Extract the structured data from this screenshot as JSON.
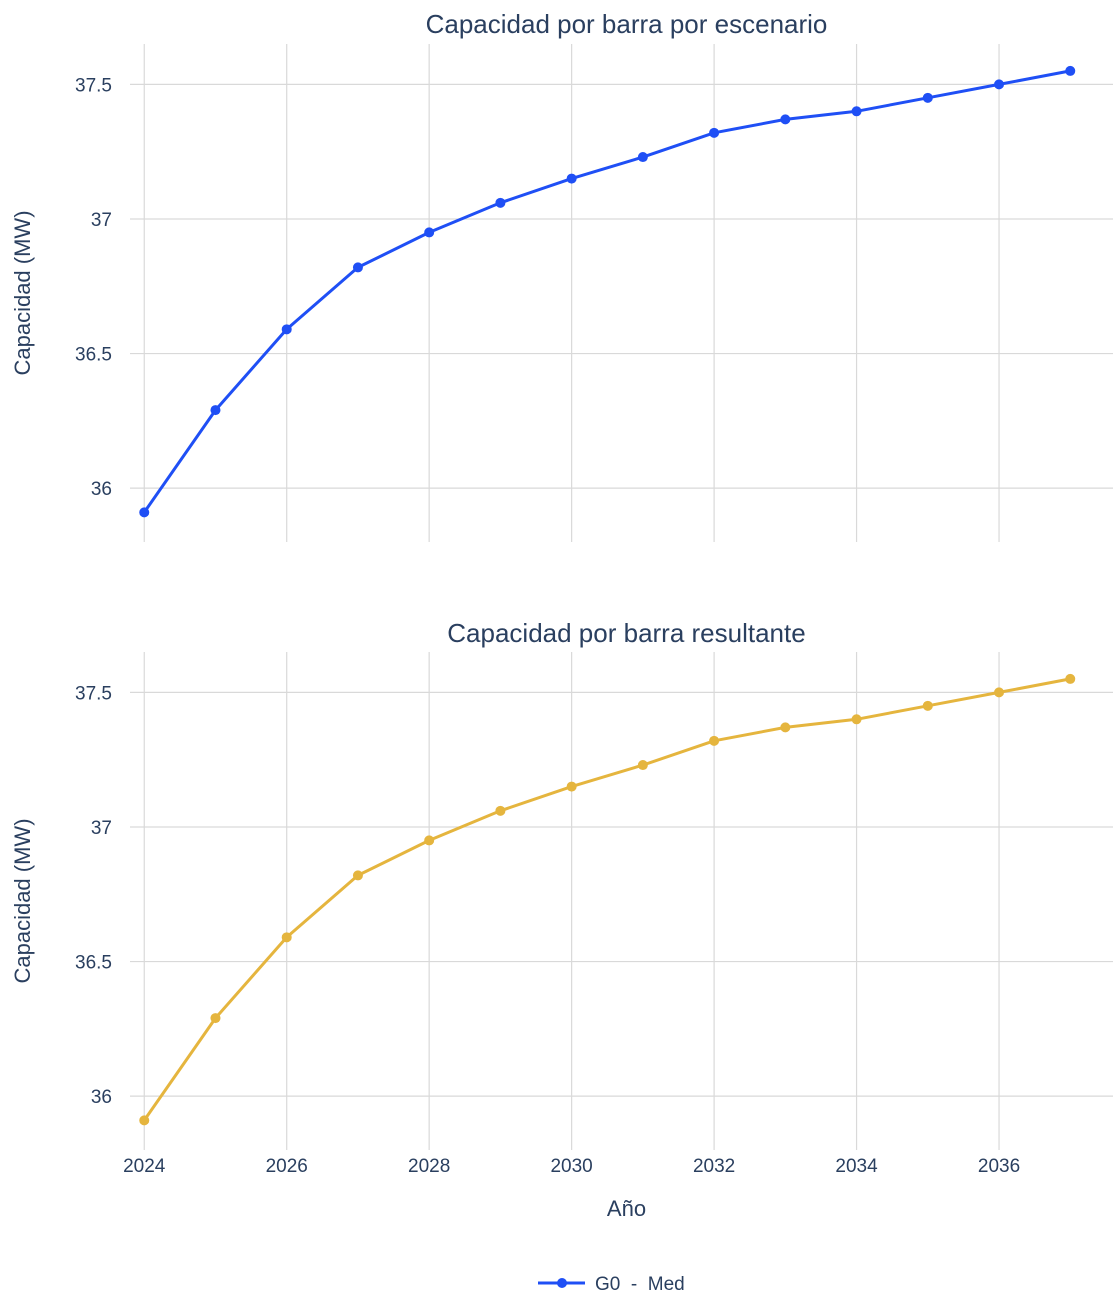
{
  "chart_data": [
    {
      "type": "line",
      "title": "Capacidad por barra por escenario",
      "xlabel": "",
      "ylabel": "Capacidad (MW)",
      "xlim": [
        2023.8,
        2037.6
      ],
      "ylim": [
        35.8,
        37.65
      ],
      "yticks": [
        36,
        36.5,
        37,
        37.5
      ],
      "ytick_labels": [
        "36",
        "36.5",
        "37",
        "37.5"
      ],
      "xticks": [
        2024,
        2026,
        2028,
        2030,
        2032,
        2034,
        2036
      ],
      "xtick_labels": [],
      "grid": true,
      "series": [
        {
          "name": "",
          "color": "#1f4ff5",
          "x": [
            2024,
            2025,
            2026,
            2027,
            2028,
            2029,
            2030,
            2031,
            2032,
            2033,
            2034,
            2035,
            2036,
            2037
          ],
          "y": [
            35.91,
            36.29,
            36.59,
            36.82,
            36.95,
            37.06,
            37.15,
            37.23,
            37.32,
            37.37,
            37.4,
            37.45,
            37.5,
            37.55
          ]
        }
      ]
    },
    {
      "type": "line",
      "title": "Capacidad por barra resultante",
      "xlabel": "Año",
      "ylabel": "Capacidad (MW)",
      "xlim": [
        2023.8,
        2037.6
      ],
      "ylim": [
        35.8,
        37.65
      ],
      "yticks": [
        36,
        36.5,
        37,
        37.5
      ],
      "ytick_labels": [
        "36",
        "36.5",
        "37",
        "37.5"
      ],
      "xticks": [
        2024,
        2026,
        2028,
        2030,
        2032,
        2034,
        2036
      ],
      "xtick_labels": [
        "2024",
        "2026",
        "2028",
        "2030",
        "2032",
        "2034",
        "2036"
      ],
      "grid": true,
      "series": [
        {
          "name": "",
          "color": "#e5b53e",
          "x": [
            2024,
            2025,
            2026,
            2027,
            2028,
            2029,
            2030,
            2031,
            2032,
            2033,
            2034,
            2035,
            2036,
            2037
          ],
          "y": [
            35.91,
            36.29,
            36.59,
            36.82,
            36.95,
            37.06,
            37.15,
            37.23,
            37.32,
            37.37,
            37.4,
            37.45,
            37.5,
            37.55
          ]
        }
      ]
    }
  ],
  "legend": {
    "placement": "bottom-center",
    "entries": [
      {
        "label": "G0  -  Med",
        "color": "#1f4ff5"
      }
    ]
  }
}
